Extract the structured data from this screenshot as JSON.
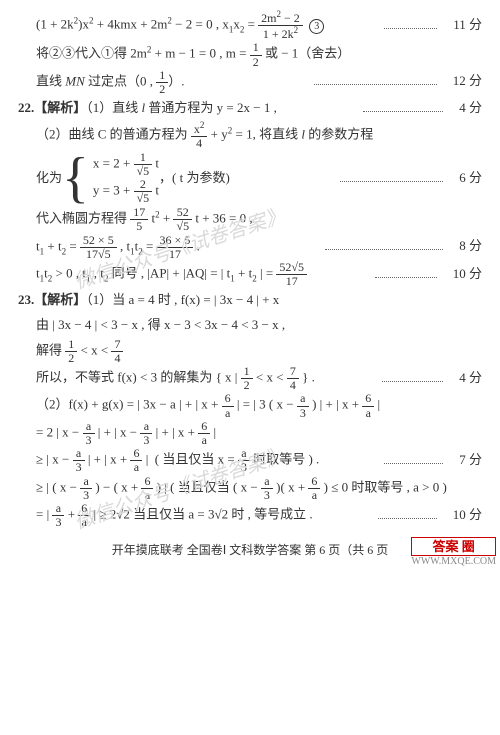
{
  "wm1": "微信公众号《试卷答案》",
  "wm2": "微信公众号《试卷答案》",
  "lines": [
    {
      "indent": "indent1",
      "score": "11 分",
      "html": "(1 + 2k<sup>2</sup>)x<sup>2</sup> + 4kmx + 2m<sup>2</sup> − 2 = 0 , x<sub>1</sub>x<sub>2</sub> = <span class='frac'><span class='num'>2m<sup>2</sup> − 2</span><span class='den'>1 + 2k<sup>2</sup></span></span>&nbsp;&nbsp;<span class='circ'>3</span>"
    },
    {
      "indent": "indent1",
      "score": "",
      "html": "将②③代入①得 2m<sup>2</sup> + m − 1 = 0 , m = <span class='frac'><span class='num'>1</span><span class='den'>2</span></span> 或 − 1（舍去）"
    },
    {
      "indent": "indent1",
      "score": "12 分",
      "html": "直线 <i>MN</i> 过定点（0 , <span class='frac'><span class='num'>1</span><span class='den'>2</span></span>）."
    },
    {
      "indent": "",
      "score": "4 分",
      "html": "<span class='qnum'>22.【解析】</span>（1）直线 <i>l</i> 普通方程为 y = 2x − 1 ,"
    },
    {
      "indent": "indent1",
      "score": "",
      "html": "（2）曲线 C 的普通方程为 <span class='frac'><span class='num'>x<sup>2</sup></span><span class='den'>4</span></span> + y<sup>2</sup> = 1, 将直线 <i>l</i> 的参数方程"
    },
    {
      "indent": "indent1",
      "score": "6 分",
      "brace": true,
      "pre": "化为",
      "rows": [
        "x = 2 + <span class='frac'><span class='num'>1</span><span class='den'>√5</span></span> t",
        "y = 3 + <span class='frac'><span class='num'>2</span><span class='den'>√5</span></span> t"
      ],
      "post": "，( t 为参数)"
    },
    {
      "indent": "indent1",
      "score": "",
      "html": "代入椭圆方程得 <span class='frac'><span class='num'>17</span><span class='den'>5</span></span> t<sup>2</sup> + <span class='frac'><span class='num'>52</span><span class='den'>√5</span></span> t + 36 = 0 ,"
    },
    {
      "indent": "indent1",
      "score": "8 分",
      "html": "t<sub>1</sub> + t<sub>2</sub> = <span class='frac'><span class='num'>52 × 5</span><span class='den'>17√5</span></span> , t<sub>1</sub>t<sub>2</sub> = <span class='frac'><span class='num'>36 × 5</span><span class='den'>17</span></span> ."
    },
    {
      "indent": "indent1",
      "score": "10 分",
      "html": "t<sub>1</sub>t<sub>2</sub> &gt; 0 , t<sub>1</sub> , t<sub>2</sub> 同号 , |AP| + |AQ| = | t<sub>1</sub> + t<sub>2</sub> | = <span class='frac'><span class='num'>52√5</span><span class='den'>17</span></span>"
    },
    {
      "indent": "",
      "score": "",
      "html": "<span class='qnum'>23.【解析】</span>（1）当 a = 4 时 , f(x) = | 3x − 4 | + x"
    },
    {
      "indent": "indent1",
      "score": "",
      "html": "由 | 3x − 4 | &lt; 3 − x , 得 x − 3 &lt; 3x − 4 &lt; 3 − x ,"
    },
    {
      "indent": "indent1",
      "score": "",
      "html": "解得 <span class='frac'><span class='num'>1</span><span class='den'>2</span></span> &lt; x &lt; <span class='frac'><span class='num'>7</span><span class='den'>4</span></span>"
    },
    {
      "indent": "indent1",
      "score": "4 分",
      "html": "所以，不等式 f(x) &lt; 3 的解集为 { x | <span class='frac'><span class='num'>1</span><span class='den'>2</span></span> &lt; x &lt; <span class='frac'><span class='num'>7</span><span class='den'>4</span></span> } ."
    },
    {
      "indent": "indent1",
      "score": "",
      "html": "（2）f(x) + g(x) = | 3x − a | + | x + <span class='frac'><span class='num'>6</span><span class='den'>a</span></span> | = | 3 ( x − <span class='frac'><span class='num'>a</span><span class='den'>3</span></span> ) | + | x + <span class='frac'><span class='num'>6</span><span class='den'>a</span></span> |"
    },
    {
      "indent": "indent1",
      "score": "",
      "html": "= 2 | x − <span class='frac'><span class='num'>a</span><span class='den'>3</span></span> | + | x − <span class='frac'><span class='num'>a</span><span class='den'>3</span></span> | + | x + <span class='frac'><span class='num'>6</span><span class='den'>a</span></span> |"
    },
    {
      "indent": "indent1",
      "score": "7 分",
      "html": "≥ | x − <span class='frac'><span class='num'>a</span><span class='den'>3</span></span> | + | x + <span class='frac'><span class='num'>6</span><span class='den'>a</span></span> |&nbsp;&nbsp;( 当且仅当 x = <span class='frac'><span class='num'>a</span><span class='den'>3</span></span> 时取等号 ) ."
    },
    {
      "indent": "indent1",
      "score": "",
      "html": "≥ | ( x − <span class='frac'><span class='num'>a</span><span class='den'>3</span></span> ) − ( x + <span class='frac'><span class='num'>6</span><span class='den'>a</span></span> ) |&nbsp;( 当且仅当 ( x − <span class='frac'><span class='num'>a</span><span class='den'>3</span></span> )( x + <span class='frac'><span class='num'>6</span><span class='den'>a</span></span> ) ≤ 0 时取等号 , a &gt; 0 )"
    },
    {
      "indent": "indent1",
      "score": "10 分",
      "html": "= | <span class='frac'><span class='num'>a</span><span class='den'>3</span></span> + <span class='frac'><span class='num'>6</span><span class='den'>a</span></span> | ≥ 2√2 当且仅当 a = 3√2 时 , 等号成立 ."
    }
  ],
  "footer": "开年摸底联考  全国卷Ⅰ  文科数学答案  第 6 页（共 6 页",
  "stamp1": "答案 圈",
  "stamp2": "WWW.MXQE.COM"
}
